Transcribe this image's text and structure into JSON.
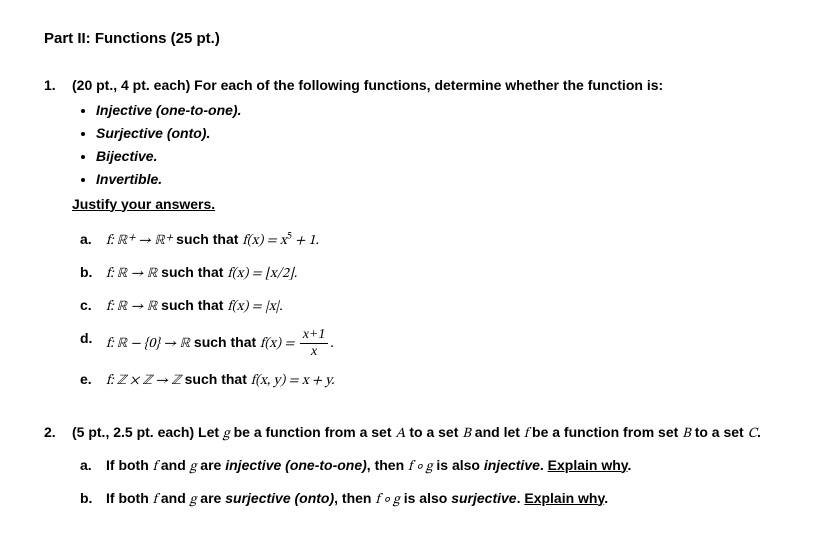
{
  "title": "Part II: Functions (25 pt.)",
  "q1": {
    "num": "1.",
    "intro_pts": "(20 pt., 4 pt. each) ",
    "intro_rest": "For each of the following functions, determine whether the function is:",
    "props": [
      {
        "term": "Injective",
        "paren": " (one-to-one)."
      },
      {
        "term": "Surjective",
        "paren": " (onto)."
      },
      {
        "term": "Bijective",
        "paren": "."
      },
      {
        "term": "Invertible",
        "paren": "."
      }
    ],
    "justify": "Justify your answers.",
    "subs": {
      "a": {
        "label": "a.",
        "before": "f: ℝ⁺ → ℝ⁺",
        "such": " such that ",
        "fx": "f(x) = x",
        "sup": "5",
        "after": " + 1."
      },
      "b": {
        "label": "b.",
        "before": "f: ℝ → ℝ",
        "such": " such that ",
        "eq": "f(x) = ⌊x/2⌋."
      },
      "c": {
        "label": "c.",
        "before": "f: ℝ → ℝ",
        "such": " such that ",
        "eq": "f(x) = |x|."
      },
      "d": {
        "label": "d.",
        "before": "f: ℝ − {0} → ℝ",
        "such": " such that ",
        "fx": "f(x) = ",
        "num": "x+1",
        "den": "x",
        "period": "."
      },
      "e": {
        "label": "e.",
        "before": "f: ℤ × ℤ → ℤ",
        "such": " such that ",
        "eq": "f(x, y) = x + y."
      }
    }
  },
  "q2": {
    "num": "2.",
    "intro_pts": "(5 pt., 2.5 pt. each) ",
    "text1": "Let ",
    "g": "g",
    "text2": " be a function from a set ",
    "A": "A",
    "text3": " to a set ",
    "B": "B",
    "text4": " and let ",
    "f": "f",
    "text5": " be a function from set ",
    "B2": "B",
    "text6": " to a set ",
    "C": "C",
    "text7": ".",
    "a": {
      "label": "a.",
      "p1": "If both ",
      "f": "f",
      "p2": " and ",
      "g": "g",
      "p3": " are ",
      "term": "injective",
      "paren": " (one-to-one)",
      "p4": ", then ",
      "comp": "f ∘ g",
      "p5": " is also ",
      "term2": "injective",
      "p6": ". ",
      "explain": "Explain why",
      "dot": "."
    },
    "b": {
      "label": "b.",
      "p1": "If both ",
      "f": "f",
      "p2": " and ",
      "g": "g",
      "p3": " are ",
      "term": "surjective",
      "paren": " (onto)",
      "p4": ", then ",
      "comp": "f ∘ g",
      "p5": " is also ",
      "term2": "surjective",
      "p6": ". ",
      "explain": "Explain why",
      "dot": "."
    }
  }
}
